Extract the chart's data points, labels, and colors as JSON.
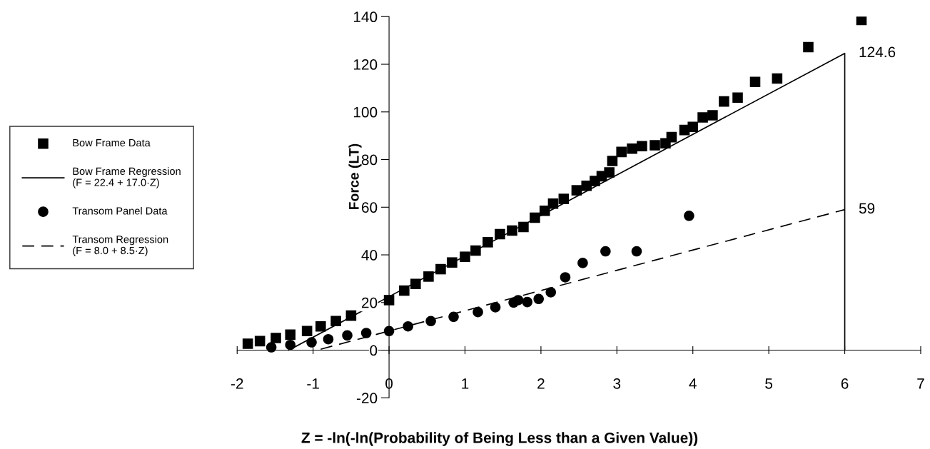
{
  "chart_data": {
    "type": "scatter",
    "xlabel": "Z = -ln(-ln(Probability of Being Less than a Given Value))",
    "ylabel": "Force (LT)",
    "xlim": [
      -2,
      7
    ],
    "ylim": [
      -20,
      140
    ],
    "xticks": [
      -2,
      -1,
      0,
      1,
      2,
      3,
      4,
      5,
      6,
      7
    ],
    "yticks": [
      -20,
      0,
      20,
      40,
      60,
      80,
      100,
      120,
      140
    ],
    "grid": false,
    "legend": "left",
    "series": [
      {
        "name": "Bow Frame Data",
        "type": "scatter",
        "marker": "square",
        "color": "#000000",
        "x": [
          -1.86,
          -1.7,
          -1.49,
          -1.3,
          -1.08,
          -0.9,
          -0.7,
          -0.5,
          0,
          0.2,
          0.35,
          0.52,
          0.68,
          0.83,
          1.0,
          1.14,
          1.3,
          1.46,
          1.62,
          1.77,
          1.92,
          2.05,
          2.16,
          2.3,
          2.47,
          2.6,
          2.71,
          2.8,
          2.9,
          2.94,
          3.06,
          3.2,
          3.33,
          3.5,
          3.64,
          3.72,
          3.89,
          4.0,
          4.13,
          4.26,
          4.41,
          4.59,
          4.82,
          5.11,
          5.52,
          6.22
        ],
        "values": [
          2.7,
          3.8,
          5.1,
          6.5,
          8,
          10,
          12.2,
          14.5,
          21,
          25,
          27.8,
          30.9,
          34,
          36.8,
          39.2,
          41.8,
          45.3,
          48.7,
          50.2,
          51.7,
          55.6,
          58.5,
          61.5,
          63.5,
          67.1,
          69,
          71,
          73,
          74.6,
          79.4,
          83.2,
          84.6,
          85.6,
          86,
          86.8,
          89.4,
          92.4,
          93.7,
          97.7,
          98.6,
          104.4,
          106,
          112.6,
          114,
          127.2,
          138.6
        ]
      },
      {
        "name": "Bow Frame Regression\n(F = 22.4 + 17.0·Z)",
        "type": "line",
        "line_style": "solid",
        "color": "#000000",
        "x": [
          -1.32,
          6,
          6
        ],
        "values": [
          0,
          124.6,
          0
        ]
      },
      {
        "name": "Transom Panel Data",
        "type": "scatter",
        "marker": "circle",
        "color": "#000000",
        "x": [
          -1.55,
          -1.3,
          -1.02,
          -0.8,
          -0.55,
          -0.3,
          0,
          0.25,
          0.55,
          0.85,
          1.17,
          1.4,
          1.64,
          1.7,
          1.82,
          1.97,
          2.13,
          2.32,
          2.55,
          2.85,
          3.26,
          3.95
        ],
        "values": [
          1.2,
          2.2,
          3.3,
          4.6,
          6.2,
          7.2,
          8,
          10,
          12.2,
          14,
          16,
          18,
          20,
          21,
          20.2,
          21.5,
          24.3,
          30.6,
          36.6,
          41.5,
          41.5,
          56.4
        ]
      },
      {
        "name": "Transom Regression\n(F = 8.0 + 8.5·Z)",
        "type": "line",
        "line_style": "dashed",
        "color": "#000000",
        "x": [
          -0.9,
          6
        ],
        "values": [
          0.4,
          59
        ]
      }
    ],
    "annotations": [
      {
        "text": "124.6",
        "x": 6,
        "y": 124.6
      },
      {
        "text": "59",
        "x": 6,
        "y": 59
      }
    ]
  }
}
